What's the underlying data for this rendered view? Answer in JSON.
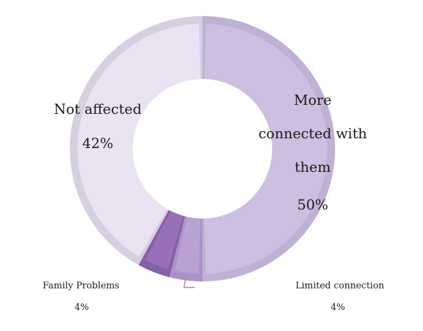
{
  "chart_data": {
    "type": "pie",
    "donut": true,
    "title": "",
    "legend": "none",
    "slices": [
      {
        "label": "More connected with them",
        "label_lines": [
          "More",
          "connected with",
          "them"
        ],
        "value": 50,
        "value_text": "50%",
        "color": "#cdbfdf",
        "edge": "#bfb0d5"
      },
      {
        "label": "Limited connection",
        "label_lines": [
          "Limited connection"
        ],
        "value": 4,
        "value_text": "4%",
        "color": "#b7a2d3",
        "edge": "#a892c8"
      },
      {
        "label": "Family Problems",
        "label_lines": [
          "Family Problems"
        ],
        "value": 4,
        "value_text": "4%",
        "color": "#9770b8",
        "edge": "#8660a8"
      },
      {
        "label": "Not affected",
        "label_lines": [
          "Not affected"
        ],
        "value": 42,
        "value_text": "42%",
        "color": "#eae3f3",
        "edge": "#d6cfe1"
      }
    ],
    "start_angle_deg": 0,
    "direction": "clockwise"
  }
}
